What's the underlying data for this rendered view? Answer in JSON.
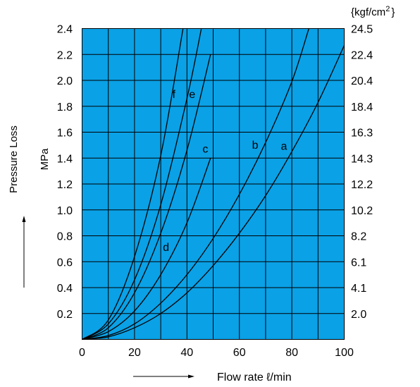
{
  "chart_data": {
    "type": "line",
    "xlabel": "Flow rate ℓ/min",
    "ylabel_line1": "Pressure Loss",
    "ylabel_line2": "MPa",
    "right_unit_base": "{kgf/cm",
    "right_unit_sup": "2",
    "right_unit_close": "}",
    "xlim": [
      0,
      100
    ],
    "ylim": [
      0,
      2.4
    ],
    "x_ticks": [
      0,
      20,
      40,
      60,
      80,
      100
    ],
    "x_tick_labels": [
      "0",
      "20",
      "40",
      "60",
      "80",
      "100"
    ],
    "y_ticks": [
      0.2,
      0.4,
      0.6,
      0.8,
      1.0,
      1.2,
      1.4,
      1.6,
      1.8,
      2.0,
      2.2,
      2.4
    ],
    "y_tick_labels": [
      "0.2",
      "0.4",
      "0.6",
      "0.8",
      "1.0",
      "1.2",
      "1.4",
      "1.6",
      "1.8",
      "2.0",
      "2.2",
      "2.4"
    ],
    "right_ticks": [
      0.2,
      0.4,
      0.6,
      0.8,
      1.0,
      1.2,
      1.4,
      1.6,
      1.8,
      2.0,
      2.2,
      2.4
    ],
    "right_tick_labels": [
      "2.0",
      "4.1",
      "6.1",
      "8.2",
      "10.2",
      "12.2",
      "14.3",
      "16.3",
      "18.4",
      "20.4",
      "22.4",
      "24.5"
    ],
    "grid": true,
    "background_color": "#0aa1e6",
    "line_color": "#000000",
    "series": [
      {
        "name": "a",
        "label_at": [
          77,
          1.49
        ],
        "x": [
          0,
          10,
          20,
          30,
          40,
          50,
          60,
          70,
          80,
          90,
          100
        ],
        "y": [
          0,
          0.02,
          0.09,
          0.2,
          0.36,
          0.57,
          0.82,
          1.11,
          1.45,
          1.83,
          2.27
        ]
      },
      {
        "name": "b",
        "label_at": [
          66,
          1.5
        ],
        "x": [
          0,
          10,
          20,
          30,
          40,
          50,
          60,
          70,
          80,
          86.5
        ],
        "y": [
          0,
          0.03,
          0.12,
          0.28,
          0.5,
          0.78,
          1.12,
          1.52,
          1.99,
          2.4
        ]
      },
      {
        "name": "c",
        "label_at": [
          47,
          1.47
        ],
        "x": [
          0,
          10,
          20,
          30,
          40,
          49
        ],
        "y": [
          0,
          0.06,
          0.22,
          0.5,
          0.9,
          1.4
        ]
      },
      {
        "name": "d",
        "label_at": [
          32,
          0.71
        ],
        "x": [
          0,
          10,
          20,
          30,
          40,
          49
        ],
        "y": [
          0,
          0.09,
          0.36,
          0.82,
          1.46,
          2.2
        ]
      },
      {
        "name": "e",
        "label_at": [
          42,
          1.89
        ],
        "x": [
          0,
          10,
          20,
          30,
          40,
          45.5
        ],
        "y": [
          0,
          0.12,
          0.46,
          1.04,
          1.86,
          2.4
        ]
      },
      {
        "name": "f",
        "label_at": [
          35,
          1.89
        ],
        "x": [
          0,
          10,
          20,
          30,
          38.5
        ],
        "y": [
          0,
          0.15,
          0.64,
          1.42,
          2.4
        ]
      }
    ]
  }
}
